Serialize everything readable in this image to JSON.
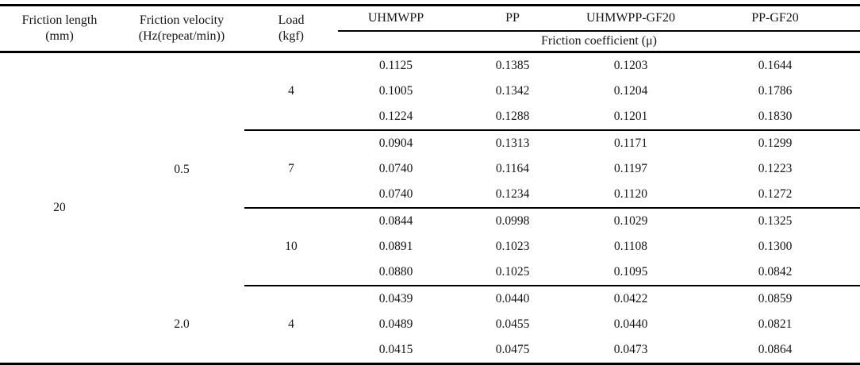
{
  "table": {
    "header": {
      "friction_length_label": "Friction length",
      "friction_length_unit": "(mm)",
      "friction_velocity_label": "Friction velocity",
      "friction_velocity_unit": "(Hz(repeat/min))",
      "load_label": "Load",
      "load_unit": "(kgf)",
      "materials": [
        "UHMWPP",
        "PP",
        "UHMWPP-GF20",
        "PP-GF20"
      ],
      "span_label": "Friction coefficient (μ)"
    },
    "body": {
      "friction_length": "20",
      "velocities": [
        "0.5",
        "2.0"
      ],
      "loads": [
        "4",
        "7",
        "10",
        "4"
      ],
      "rows": [
        [
          "0.1125",
          "0.1385",
          "0.1203",
          "0.1644"
        ],
        [
          "0.1005",
          "0.1342",
          "0.1204",
          "0.1786"
        ],
        [
          "0.1224",
          "0.1288",
          "0.1201",
          "0.1830"
        ],
        [
          "0.0904",
          "0.1313",
          "0.1171",
          "0.1299"
        ],
        [
          "0.0740",
          "0.1164",
          "0.1197",
          "0.1223"
        ],
        [
          "0.0740",
          "0.1234",
          "0.1120",
          "0.1272"
        ],
        [
          "0.0844",
          "0.0998",
          "0.1029",
          "0.1325"
        ],
        [
          "0.0891",
          "0.1023",
          "0.1108",
          "0.1300"
        ],
        [
          "0.0880",
          "0.1025",
          "0.1095",
          "0.0842"
        ],
        [
          "0.0439",
          "0.0440",
          "0.0422",
          "0.0859"
        ],
        [
          "0.0489",
          "0.0455",
          "0.0440",
          "0.0821"
        ],
        [
          "0.0415",
          "0.0475",
          "0.0473",
          "0.0864"
        ]
      ]
    }
  },
  "colors": {
    "border": "#000000",
    "text": "#141414",
    "background": "#ffffff"
  },
  "chart_data": {
    "type": "table",
    "title": "Friction coefficient (μ) by material, friction velocity and load",
    "columns": [
      "Friction length (mm)",
      "Friction velocity (Hz(repeat/min))",
      "Load (kgf)",
      "UHMWPP",
      "PP",
      "UHMWPP-GF20",
      "PP-GF20"
    ],
    "spanning_header": "Friction coefficient (μ)",
    "rows": [
      [
        20,
        0.5,
        4,
        0.1125,
        0.1385,
        0.1203,
        0.1644
      ],
      [
        20,
        0.5,
        4,
        0.1005,
        0.1342,
        0.1204,
        0.1786
      ],
      [
        20,
        0.5,
        4,
        0.1224,
        0.1288,
        0.1201,
        0.183
      ],
      [
        20,
        0.5,
        7,
        0.0904,
        0.1313,
        0.1171,
        0.1299
      ],
      [
        20,
        0.5,
        7,
        0.074,
        0.1164,
        0.1197,
        0.1223
      ],
      [
        20,
        0.5,
        7,
        0.074,
        0.1234,
        0.112,
        0.1272
      ],
      [
        20,
        0.5,
        10,
        0.0844,
        0.0998,
        0.1029,
        0.1325
      ],
      [
        20,
        0.5,
        10,
        0.0891,
        0.1023,
        0.1108,
        0.13
      ],
      [
        20,
        0.5,
        10,
        0.088,
        0.1025,
        0.1095,
        0.0842
      ],
      [
        20,
        2.0,
        4,
        0.0439,
        0.044,
        0.0422,
        0.0859
      ],
      [
        20,
        2.0,
        4,
        0.0489,
        0.0455,
        0.044,
        0.0821
      ],
      [
        20,
        2.0,
        4,
        0.0415,
        0.0475,
        0.0473,
        0.0864
      ]
    ]
  }
}
